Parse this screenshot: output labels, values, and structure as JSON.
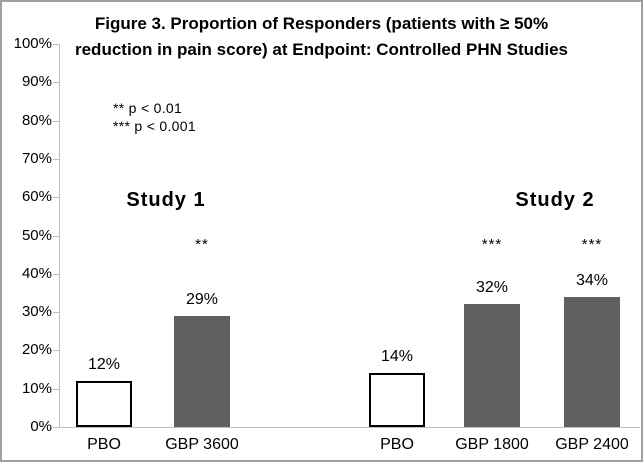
{
  "title_lines": {
    "line1": "Figure 3. Proportion of Responders (patients with ≥ 50%",
    "line2": "reduction in pain score) at Endpoint: Controlled PHN Studies"
  },
  "chart_data": {
    "type": "bar",
    "title": "Figure 3. Proportion of Responders (patients with ≥ 50% reduction in pain score) at Endpoint: Controlled PHN Studies",
    "xlabel": "",
    "ylabel": "",
    "ylim": [
      0,
      100
    ],
    "ytick_step": 10,
    "ytick_labels": [
      "0%",
      "10%",
      "20%",
      "30%",
      "40%",
      "50%",
      "60%",
      "70%",
      "80%",
      "90%",
      "100%"
    ],
    "grid": false,
    "legend_position": "none",
    "annotations": [
      {
        "text": "** p < 0.01"
      },
      {
        "text": "*** p < 0.001"
      }
    ],
    "groups": [
      {
        "label": "Study 1",
        "bars": [
          {
            "category": "PBO",
            "value": 12,
            "value_label": "12%",
            "fill": "light",
            "significance": ""
          },
          {
            "category": "GBP 3600",
            "value": 29,
            "value_label": "29%",
            "fill": "dark",
            "significance": "**"
          }
        ]
      },
      {
        "label": "Study 2",
        "bars": [
          {
            "category": "PBO",
            "value": 14,
            "value_label": "14%",
            "fill": "light",
            "significance": ""
          },
          {
            "category": "GBP 1800",
            "value": 32,
            "value_label": "32%",
            "fill": "dark",
            "significance": "***"
          },
          {
            "category": "GBP 2400",
            "value": 34,
            "value_label": "34%",
            "fill": "dark",
            "significance": "***"
          }
        ]
      }
    ],
    "colors": {
      "bar_dark": "#5f5f5f",
      "bar_light": "#ffffff",
      "bar_border": "#000000",
      "axis_line": "#bfbfbf",
      "text": "#000000",
      "outer_border": "#a0a0a0"
    }
  }
}
